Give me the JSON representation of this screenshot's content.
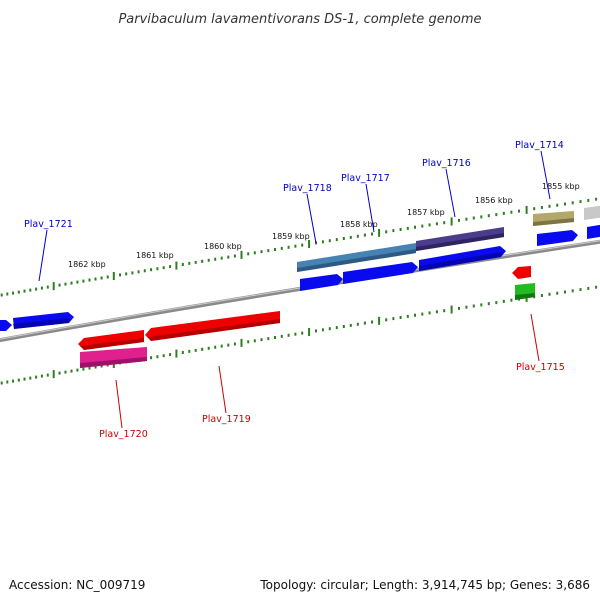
{
  "title": "Parvibaculum lavamentivorans DS-1, complete genome",
  "footer": {
    "accession": "Accession: NC_009719",
    "topology": "Topology: circular; Length: 3,914,745 bp; Genes: 3,686"
  },
  "colors": {
    "backbone": "#8a8a8a",
    "tick": "#2e7d22",
    "forward_label": "#0000cc",
    "reverse_label": "#cc0000"
  },
  "kbp_labels": [
    "1862 kbp",
    "1861 kbp",
    "1860 kbp",
    "1859 kbp",
    "1858 kbp",
    "1857 kbp",
    "1856 kbp",
    "1855 kbp"
  ],
  "genes": [
    {
      "label": "Plav_1721",
      "strand": "forward"
    },
    {
      "label": "Plav_1718",
      "strand": "forward"
    },
    {
      "label": "Plav_1717",
      "strand": "forward"
    },
    {
      "label": "Plav_1716",
      "strand": "forward"
    },
    {
      "label": "Plav_1714",
      "strand": "forward"
    },
    {
      "label": "Plav_1715",
      "strand": "reverse"
    },
    {
      "label": "Plav_1720",
      "strand": "reverse"
    },
    {
      "label": "Plav_1719",
      "strand": "reverse"
    }
  ]
}
